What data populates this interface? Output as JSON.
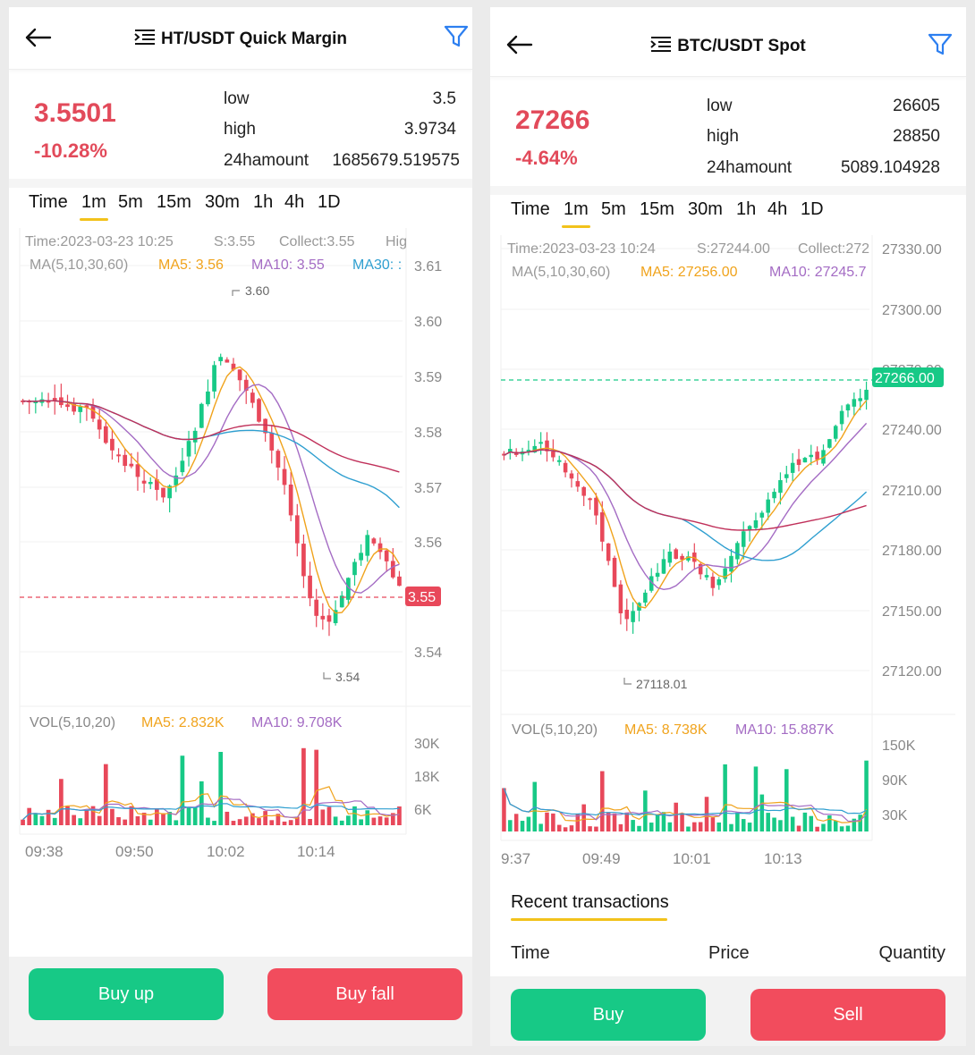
{
  "left": {
    "header": {
      "title": "HT/USDT Quick Margin",
      "back_icon": "arrow-left-icon",
      "filter_icon": "filter-icon",
      "menu_icon": "menu-indent-icon"
    },
    "ticker": {
      "price": "3.5501",
      "change": "-10.28%",
      "low_label": "low",
      "low": "3.5",
      "high_label": "high",
      "high": "3.9734",
      "amount_label": "24hamount",
      "amount": "1685679.519575"
    },
    "tabs": [
      "Time",
      "1m",
      "5m",
      "15m",
      "30m",
      "1h",
      "4h",
      "1D"
    ],
    "active_tab": "1m",
    "info": {
      "time": "Time:2023-03-23 10:25",
      "s": "S:3.55",
      "collect": "Collect:3.55",
      "hi": "Hig"
    },
    "ma": {
      "label": "MA(5,10,30,60)",
      "ma5": "MA5: 3.56",
      "ma10": "MA10: 3.55",
      "ma30": "MA30: :"
    },
    "y_ticks": [
      "3.61",
      "3.60",
      "3.59",
      "3.58",
      "3.57",
      "3.56",
      "3.55",
      "3.54"
    ],
    "current_price_tag": "3.55",
    "max_marker": "3.60",
    "min_marker": "3.54",
    "vol": {
      "label": "VOL(5,10,20)",
      "ma5": "MA5: 2.832K",
      "ma10": "MA10: 9.708K",
      "ticks": [
        "30K",
        "18K",
        "6K"
      ]
    },
    "x_ticks": [
      "09:38",
      "09:50",
      "10:02",
      "10:14"
    ],
    "buttons": {
      "buy": "Buy up",
      "sell": "Buy fall"
    }
  },
  "right": {
    "header": {
      "title": "BTC/USDT Spot",
      "back_icon": "arrow-left-icon",
      "filter_icon": "filter-icon",
      "menu_icon": "menu-indent-icon"
    },
    "ticker": {
      "price": "27266",
      "change": "-4.64%",
      "low_label": "low",
      "low": "26605",
      "high_label": "high",
      "high": "28850",
      "amount_label": "24hamount",
      "amount": "5089.104928"
    },
    "tabs": [
      "Time",
      "1m",
      "5m",
      "15m",
      "30m",
      "1h",
      "4h",
      "1D"
    ],
    "active_tab": "1m",
    "info": {
      "time": "Time:2023-03-23 10:24",
      "s": "S:27244.00",
      "collect": "Collect:272"
    },
    "ma": {
      "label": "MA(5,10,30,60)",
      "ma5": "MA5: 27256.00",
      "ma10": "MA10: 27245.7"
    },
    "y_ticks": [
      "27330.00",
      "27300.00",
      "27270.00",
      "27240.00",
      "27210.00",
      "27180.00",
      "27150.00",
      "27120.00"
    ],
    "current_price_tag": "27266.00",
    "min_marker": "27118.01",
    "vol": {
      "label": "VOL(5,10,20)",
      "ma5": "MA5: 8.738K",
      "ma10": "MA10: 15.887K",
      "ticks": [
        "150K",
        "90K",
        "30K"
      ]
    },
    "x_ticks": [
      "9:37",
      "09:49",
      "10:01",
      "10:13"
    ],
    "recent": {
      "title": "Recent transactions",
      "col_time": "Time",
      "col_price": "Price",
      "col_qty": "Quantity"
    },
    "buttons": {
      "buy": "Buy",
      "sell": "Sell"
    }
  },
  "colors": {
    "up": "#17c986",
    "down": "#e8485a",
    "ma5": "#f0a31c",
    "ma10": "#a46cc4",
    "ma30": "#2f9fd0",
    "ma60": "#c0305a",
    "accent": "#f2c21b"
  }
}
